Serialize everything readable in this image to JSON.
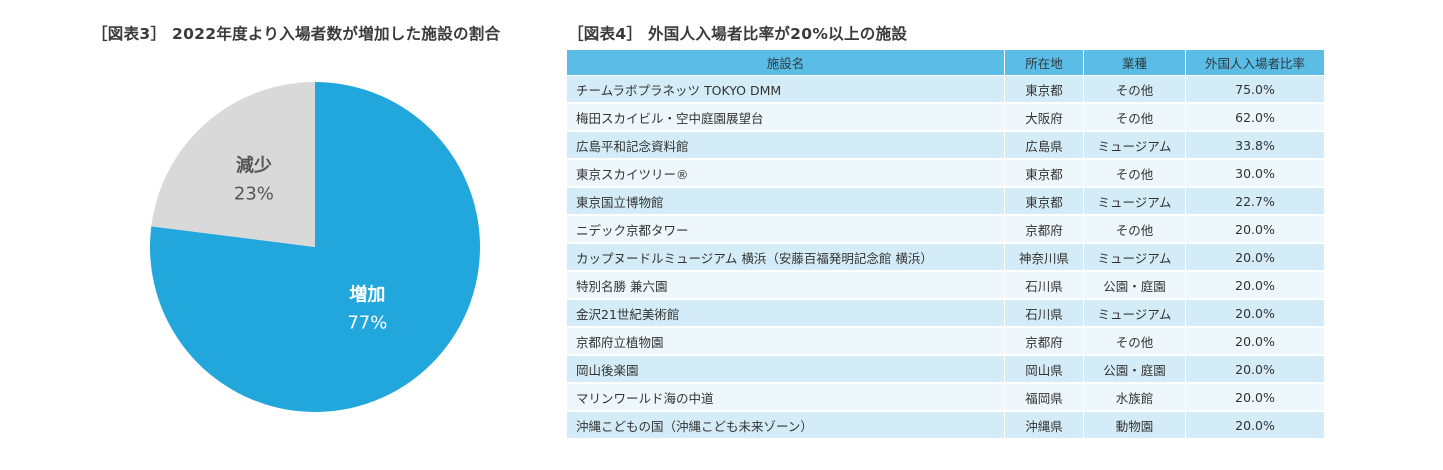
{
  "chart_data": [
    {
      "type": "pie",
      "title": "［図表3］ 2022年度より入場者数が増加した施設の割合",
      "slices": [
        {
          "label": "増加",
          "value": 77,
          "value_label": "77%",
          "color": "#22a7dc"
        },
        {
          "label": "減少",
          "value": 23,
          "value_label": "23%",
          "color": "#d9d9d9"
        }
      ]
    },
    {
      "type": "table",
      "title": "［図表4］ 外国人入場者比率が20%以上の施設",
      "columns": [
        "施設名",
        "所在地",
        "業種",
        "外国人入場者比率"
      ],
      "rows": [
        [
          "チームラボプラネッツ TOKYO DMM",
          "東京都",
          "その他",
          "75.0%"
        ],
        [
          "梅田スカイビル・空中庭園展望台",
          "大阪府",
          "その他",
          "62.0%"
        ],
        [
          "広島平和記念資料館",
          "広島県",
          "ミュージアム",
          "33.8%"
        ],
        [
          "東京スカイツリー®",
          "東京都",
          "その他",
          "30.0%"
        ],
        [
          "東京国立博物館",
          "東京都",
          "ミュージアム",
          "22.7%"
        ],
        [
          "ニデック京都タワー",
          "京都府",
          "その他",
          "20.0%"
        ],
        [
          "カップヌードルミュージアム 横浜（安藤百福発明記念館 横浜）",
          "神奈川県",
          "ミュージアム",
          "20.0%"
        ],
        [
          "特別名勝 兼六園",
          "石川県",
          "公園・庭園",
          "20.0%"
        ],
        [
          "金沢21世紀美術館",
          "石川県",
          "ミュージアム",
          "20.0%"
        ],
        [
          "京都府立植物園",
          "京都府",
          "その他",
          "20.0%"
        ],
        [
          "岡山後楽園",
          "岡山県",
          "公園・庭園",
          "20.0%"
        ],
        [
          "マリンワールド海の中道",
          "福岡県",
          "水族館",
          "20.0%"
        ],
        [
          "沖縄こどもの国（沖縄こども未来ゾーン）",
          "沖縄県",
          "動物園",
          "20.0%"
        ]
      ]
    }
  ]
}
